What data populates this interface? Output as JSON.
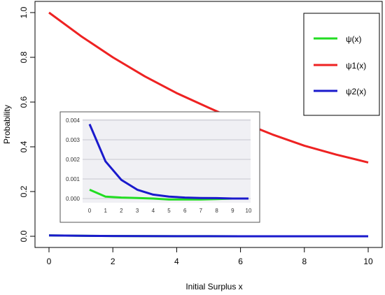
{
  "chart_data": [
    {
      "type": "line",
      "title": "",
      "xlabel": "Initial Surplus x",
      "ylabel": "Probability",
      "xlim": [
        0,
        10
      ],
      "ylim": [
        0,
        1
      ],
      "x_ticks": [
        "0",
        "2",
        "4",
        "6",
        "8",
        "10"
      ],
      "y_ticks": [
        "0.0",
        "0.2",
        "0.4",
        "0.6",
        "0.8",
        "1.0"
      ],
      "legend_position": "top-right",
      "series": [
        {
          "name": "ψ(x)",
          "color": "#22dd22",
          "x": [
            0,
            1,
            2,
            3,
            4,
            5,
            6,
            7,
            8,
            9,
            10
          ],
          "y": [
            0.0037,
            0.0021,
            0.0012,
            0.0007,
            0.0004,
            0.0002,
            0.0001,
            0.0001,
            0.0,
            0.0,
            0.0
          ]
        },
        {
          "name": "ψ1(x)",
          "color": "#ee2222",
          "x": [
            0,
            1,
            2,
            3,
            4,
            5,
            6,
            7,
            8,
            9,
            10
          ],
          "y": [
            1.0,
            0.895,
            0.8,
            0.715,
            0.64,
            0.575,
            0.512,
            0.455,
            0.405,
            0.365,
            0.33
          ]
        },
        {
          "name": "ψ2(x)",
          "color": "#1a1acc",
          "x": [
            0,
            1,
            2,
            3,
            4,
            5,
            6,
            7,
            8,
            9,
            10
          ],
          "y": [
            0.0038,
            0.0023,
            0.0013,
            0.0008,
            0.0004,
            0.0002,
            0.0001,
            0.0001,
            0.0,
            0.0,
            0.0
          ]
        }
      ]
    },
    {
      "type": "line",
      "title": "",
      "xlim": [
        0,
        10
      ],
      "ylim": [
        0,
        0.004
      ],
      "x_ticks": [
        "0",
        "1",
        "2",
        "3",
        "4",
        "5",
        "6",
        "7",
        "8",
        "9",
        "10"
      ],
      "y_ticks": [
        "0.000",
        "0.001",
        "0.002",
        "0.003",
        "0.004"
      ],
      "grid": true,
      "series": [
        {
          "name": "ψ(x)",
          "color": "#22dd22",
          "x": [
            0,
            1,
            2,
            3,
            4,
            5,
            6,
            7,
            8,
            9,
            10
          ],
          "y": [
            0.00045,
            0.0001,
            5e-05,
            3e-05,
            0.0,
            -5e-05,
            -5e-05,
            -5e-05,
            -3e-05,
            0.0,
            0.0
          ]
        },
        {
          "name": "ψ2(x)",
          "color": "#1a1acc",
          "x": [
            0,
            1,
            2,
            3,
            4,
            5,
            6,
            7,
            8,
            9,
            10
          ],
          "y": [
            0.0038,
            0.0019,
            0.00095,
            0.00045,
            0.0002,
            0.0001,
            5e-05,
            3e-05,
            2e-05,
            0.0,
            0.0
          ]
        }
      ]
    }
  ]
}
